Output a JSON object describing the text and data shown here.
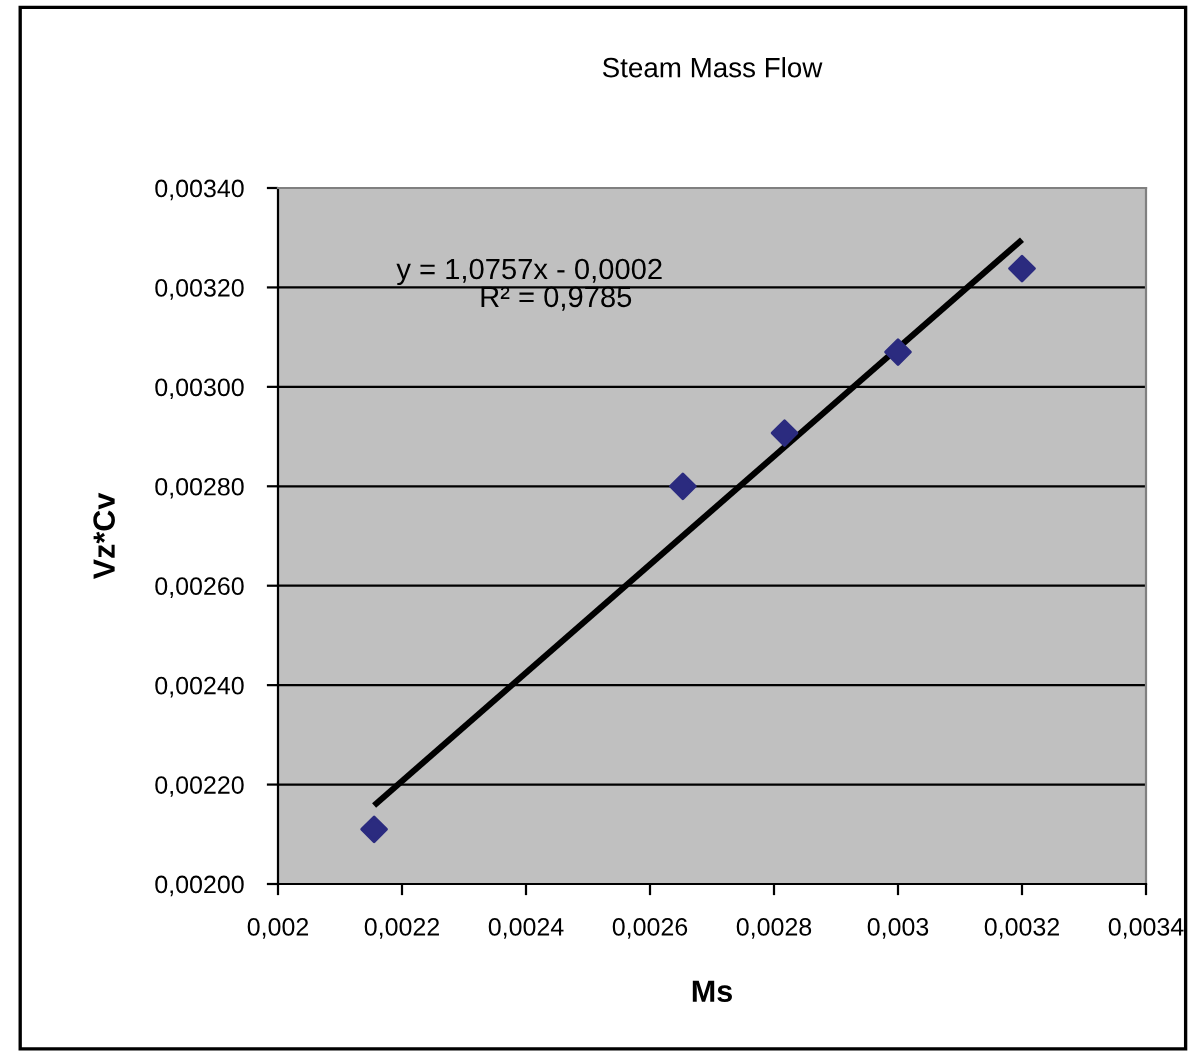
{
  "chart_data": {
    "type": "scatter",
    "title": "Steam Mass Flow",
    "xlabel": "Ms",
    "ylabel": "Vz*Cv",
    "series": [
      {
        "color": "#2b2b7f",
        "marker": "diamond",
        "x": [
          0.002155,
          0.002653,
          0.002817,
          0.003,
          0.0032
        ],
        "values": [
          0.00211,
          0.0028,
          0.002907,
          0.00307,
          0.003238
        ]
      },
      {
        "type": "line",
        "color": "#000000",
        "x": [
          0.002155,
          0.0032
        ],
        "values": [
          0.002158,
          0.003296
        ]
      }
    ],
    "annotations": [
      "y = 1,0757x - 0,0002",
      "R² = 0,9785"
    ],
    "xlim": [
      0.002,
      0.0034
    ],
    "xticks": [
      {
        "value": 0.002,
        "label": "0,002"
      },
      {
        "value": 0.0022,
        "label": "0,0022"
      },
      {
        "value": 0.0024,
        "label": "0,0024"
      },
      {
        "value": 0.0026,
        "label": "0,0026"
      },
      {
        "value": 0.0028,
        "label": "0,0028"
      },
      {
        "value": 0.003,
        "label": "0,003"
      },
      {
        "value": 0.0032,
        "label": "0,0032"
      },
      {
        "value": 0.0034,
        "label": "0,0034"
      }
    ],
    "ylim": [
      0.002,
      0.0034
    ],
    "yticks": [
      {
        "value": 0.002,
        "label": "0,00200"
      },
      {
        "value": 0.0022,
        "label": "0,00220"
      },
      {
        "value": 0.0024,
        "label": "0,00240"
      },
      {
        "value": 0.0026,
        "label": "0,00260"
      },
      {
        "value": 0.0028,
        "label": "0,00280"
      },
      {
        "value": 0.003,
        "label": "0,00300"
      },
      {
        "value": 0.0032,
        "label": "0,00320"
      },
      {
        "value": 0.0034,
        "label": "0,00340"
      }
    ],
    "grid": "y"
  }
}
